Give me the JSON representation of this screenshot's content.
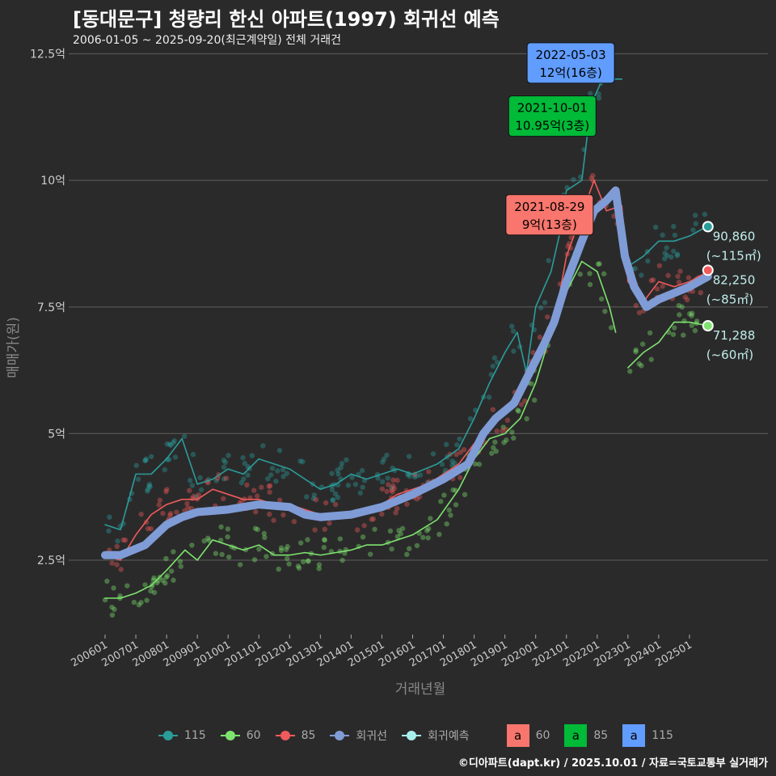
{
  "header": {
    "title": "[동대문구] 청량리 한신 아파트(1997) 회귀선 예측",
    "subtitle": "2006-01-05 ~ 2025-09-20(최근계약일) 전체 거래건"
  },
  "credit": "©디아파트(dapt.kr) / 2025.10.01 / 자료=국토교통부 실거래가",
  "colors": {
    "s115": "#2a9d9a",
    "s60": "#7ee36f",
    "s85": "#ef5b5b",
    "reg": "#7f9cd6",
    "pred": "#a8f0ee",
    "box60": "#f8766d",
    "box85": "#00ba38",
    "box115": "#619cff"
  },
  "chart_data": {
    "type": "line",
    "xlabel": "거래년월",
    "ylabel": "매매가(원)",
    "ylim": [
      0.9,
      12.5
    ],
    "xlim": [
      2005.7,
      2026.2
    ],
    "yticks": [
      {
        "v": 2.5,
        "label": "2.5억"
      },
      {
        "v": 5,
        "label": "5억"
      },
      {
        "v": 7.5,
        "label": "7.5억"
      },
      {
        "v": 10,
        "label": "10억"
      },
      {
        "v": 12.5,
        "label": "12.5억"
      }
    ],
    "xticks": [
      "200601",
      "200701",
      "200801",
      "200901",
      "201001",
      "201101",
      "201201",
      "201301",
      "201401",
      "201501",
      "201601",
      "201701",
      "201801",
      "201901",
      "202001",
      "202101",
      "202201",
      "202301",
      "202401",
      "202501"
    ],
    "series": [
      {
        "name": "115",
        "color_key": "s115",
        "segments": [
          [
            [
              2006,
              3.2
            ],
            [
              2006.5,
              3.1
            ],
            [
              2007,
              4.2
            ],
            [
              2007.5,
              4.2
            ],
            [
              2008,
              4.5
            ],
            [
              2008.5,
              4.9
            ],
            [
              2009,
              4.0
            ],
            [
              2009.5,
              4.1
            ],
            [
              2010,
              4.3
            ],
            [
              2010.5,
              4.2
            ],
            [
              2011,
              4.5
            ],
            [
              2011.5,
              4.4
            ],
            [
              2012,
              4.3
            ],
            [
              2012.5,
              4.1
            ],
            [
              2013,
              3.9
            ],
            [
              2013.5,
              4.0
            ],
            [
              2014,
              4.2
            ],
            [
              2014.5,
              4.1
            ],
            [
              2015,
              4.2
            ],
            [
              2015.5,
              4.3
            ],
            [
              2016,
              4.2
            ],
            [
              2016.8,
              4.4
            ],
            [
              2017.5,
              4.7
            ],
            [
              2018,
              5.3
            ],
            [
              2018.5,
              6.0
            ],
            [
              2019,
              6.6
            ],
            [
              2019.4,
              7.0
            ],
            [
              2019.7,
              6.2
            ],
            [
              2020,
              7.5
            ],
            [
              2020.5,
              8.2
            ],
            [
              2020.8,
              9.0
            ],
            [
              2021,
              9.8
            ],
            [
              2021.5,
              10.0
            ],
            [
              2021.8,
              11.5
            ],
            [
              2022.1,
              11.9
            ],
            [
              2022.4,
              12.0
            ],
            [
              2022.8,
              12.0
            ]
          ],
          [
            [
              2023.0,
              8.3
            ],
            [
              2023.5,
              8.5
            ],
            [
              2024,
              8.8
            ],
            [
              2024.5,
              8.8
            ],
            [
              2025,
              8.9
            ],
            [
              2025.6,
              9.1
            ]
          ]
        ]
      },
      {
        "name": "60",
        "color_key": "s60",
        "segments": [
          [
            [
              2006,
              1.75
            ],
            [
              2006.5,
              1.75
            ],
            [
              2007,
              1.85
            ],
            [
              2007.5,
              2.0
            ],
            [
              2008,
              2.3
            ],
            [
              2008.6,
              2.7
            ],
            [
              2009,
              2.5
            ],
            [
              2009.5,
              2.9
            ],
            [
              2010,
              2.8
            ],
            [
              2010.5,
              2.7
            ],
            [
              2011,
              2.8
            ],
            [
              2011.5,
              2.6
            ],
            [
              2012,
              2.6
            ],
            [
              2012.5,
              2.65
            ],
            [
              2013,
              2.6
            ],
            [
              2013.5,
              2.65
            ],
            [
              2014,
              2.7
            ],
            [
              2014.5,
              2.8
            ],
            [
              2015,
              2.8
            ],
            [
              2015.5,
              2.9
            ],
            [
              2016,
              3.0
            ],
            [
              2016.8,
              3.3
            ],
            [
              2017.5,
              3.9
            ],
            [
              2018,
              4.5
            ],
            [
              2018.5,
              4.9
            ],
            [
              2019,
              5.0
            ],
            [
              2019.5,
              5.3
            ],
            [
              2020,
              6.0
            ],
            [
              2020.5,
              7.0
            ],
            [
              2021,
              7.8
            ],
            [
              2021.5,
              8.4
            ],
            [
              2022,
              8.2
            ],
            [
              2022.4,
              7.5
            ],
            [
              2022.6,
              7.0
            ]
          ],
          [
            [
              2023,
              6.3
            ],
            [
              2023.5,
              6.6
            ],
            [
              2024,
              6.8
            ],
            [
              2024.5,
              7.2
            ],
            [
              2025,
              7.2
            ],
            [
              2025.6,
              7.13
            ]
          ]
        ]
      },
      {
        "name": "85",
        "color_key": "s85",
        "segments": [
          [
            [
              2006,
              2.6
            ],
            [
              2006.5,
              2.5
            ],
            [
              2007,
              3.0
            ],
            [
              2007.5,
              3.4
            ],
            [
              2008,
              3.6
            ],
            [
              2008.5,
              3.7
            ],
            [
              2009,
              3.7
            ],
            [
              2009.5,
              3.9
            ],
            [
              2010,
              3.8
            ],
            [
              2010.5,
              3.7
            ],
            [
              2011,
              3.7
            ],
            [
              2011.5,
              3.6
            ],
            [
              2012,
              3.6
            ],
            [
              2012.5,
              3.5
            ],
            [
              2013,
              3.4
            ],
            [
              2013.5,
              3.4
            ],
            [
              2014,
              3.4
            ],
            [
              2014.5,
              3.5
            ],
            [
              2015,
              3.6
            ],
            [
              2015.5,
              3.8
            ],
            [
              2016,
              3.9
            ],
            [
              2016.5,
              4.0
            ],
            [
              2017,
              4.2
            ],
            [
              2017.5,
              4.4
            ],
            [
              2018,
              4.8
            ],
            [
              2018.5,
              5.1
            ],
            [
              2019,
              5.4
            ],
            [
              2019.5,
              5.8
            ],
            [
              2020,
              6.4
            ],
            [
              2020.7,
              7.5
            ],
            [
              2021,
              8.5
            ],
            [
              2021.6,
              9.5
            ],
            [
              2021.9,
              10.0
            ],
            [
              2022.3,
              9.4
            ],
            [
              2022.8,
              9.5
            ],
            [
              2023,
              8.0
            ],
            [
              2023.5,
              7.6
            ],
            [
              2024,
              8.0
            ],
            [
              2024.5,
              7.9
            ],
            [
              2025,
              8.0
            ],
            [
              2025.6,
              8.2
            ]
          ]
        ]
      },
      {
        "name": "회귀선",
        "color_key": "reg",
        "segments": [
          [
            [
              2006,
              2.6
            ],
            [
              2006.5,
              2.6
            ],
            [
              2007.3,
              2.8
            ],
            [
              2008,
              3.2
            ],
            [
              2008.5,
              3.35
            ],
            [
              2009,
              3.45
            ],
            [
              2010,
              3.5
            ],
            [
              2011,
              3.6
            ],
            [
              2012,
              3.55
            ],
            [
              2012.5,
              3.4
            ],
            [
              2013,
              3.35
            ],
            [
              2014,
              3.4
            ],
            [
              2015,
              3.55
            ],
            [
              2016,
              3.8
            ],
            [
              2017,
              4.1
            ],
            [
              2017.8,
              4.4
            ],
            [
              2018.3,
              5.0
            ],
            [
              2018.7,
              5.3
            ],
            [
              2019.3,
              5.6
            ],
            [
              2019.8,
              6.2
            ],
            [
              2020.3,
              6.8
            ],
            [
              2020.6,
              7.2
            ],
            [
              2021,
              8.0
            ],
            [
              2021.5,
              8.8
            ],
            [
              2021.9,
              9.4
            ],
            [
              2022.3,
              9.6
            ],
            [
              2022.6,
              9.8
            ],
            [
              2022.9,
              8.5
            ],
            [
              2023.2,
              7.9
            ],
            [
              2023.6,
              7.5
            ],
            [
              2024,
              7.65
            ],
            [
              2024.6,
              7.8
            ],
            [
              2025,
              7.9
            ],
            [
              2025.6,
              8.1
            ]
          ]
        ]
      }
    ],
    "end_points": [
      {
        "series": "115",
        "x": 2025.6,
        "y": 9.086,
        "value": "90,860",
        "area": "(~115㎡)",
        "color_key": "s115"
      },
      {
        "series": "85",
        "x": 2025.6,
        "y": 8.225,
        "value": "82,250",
        "area": "(~85㎡)",
        "color_key": "s85"
      },
      {
        "series": "60",
        "x": 2025.6,
        "y": 7.129,
        "value": "71,288",
        "area": "(~60㎡)",
        "color_key": "s60"
      }
    ],
    "annotations": [
      {
        "date": "2022-05-03",
        "price": "12억(16층)",
        "x": 2022.35,
        "y": 12.0,
        "color_key": "box115"
      },
      {
        "date": "2021-10-01",
        "price": "10.95억(3층)",
        "x": 2021.75,
        "y": 10.95,
        "color_key": "box85"
      },
      {
        "date": "2021-08-29",
        "price": "9억(13층)",
        "x": 2021.66,
        "y": 9.0,
        "color_key": "box60"
      }
    ],
    "legend": {
      "lines": [
        "115",
        "60",
        "85",
        "회귀선",
        "회귀예측"
      ],
      "boxes": [
        {
          "letter": "a",
          "label": "60"
        },
        {
          "letter": "a",
          "label": "85"
        },
        {
          "letter": "a",
          "label": "115"
        }
      ]
    }
  }
}
